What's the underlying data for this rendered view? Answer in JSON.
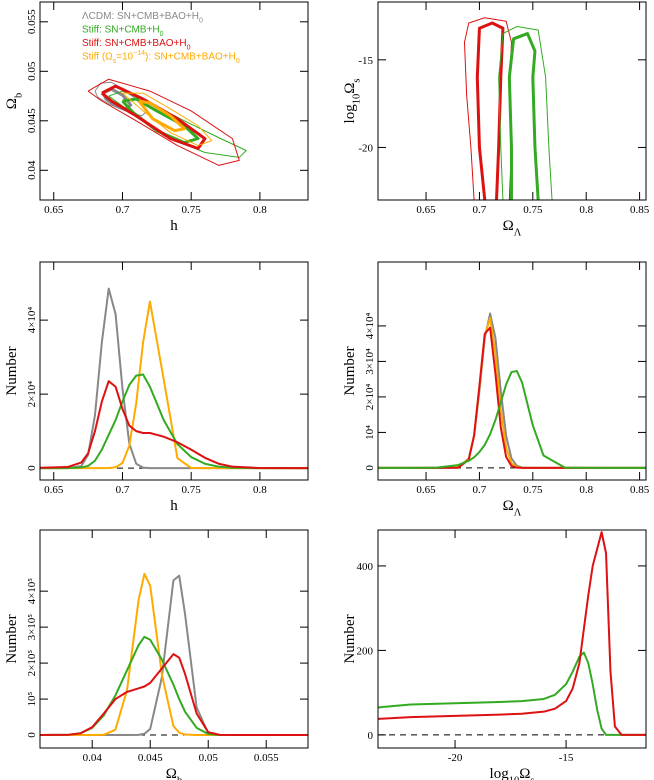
{
  "chart_data": [
    {
      "type": "contour",
      "xlabel": [
        {
          "text": "h"
        }
      ],
      "ylabel": [
        {
          "text": "Ω"
        },
        {
          "text": "b",
          "sub": true
        }
      ],
      "xlim": [
        0.64,
        0.835
      ],
      "ylim": [
        0.037,
        0.057
      ],
      "xticks": [
        0.65,
        0.7,
        0.75,
        0.8
      ],
      "yticks": [
        0.04,
        0.045,
        0.05,
        0.055
      ],
      "rotate_yticks": true,
      "series": [
        {
          "name": [
            {
              "text": "ΛCDM:  SN+CMB+BAO+H"
            },
            {
              "text": "0",
              "sub": true
            }
          ],
          "color": "#888888",
          "contours": [
            {
              "width": 1,
              "x": [
                0.68,
                0.684,
                0.692,
                0.7,
                0.712,
                0.718,
                0.714,
                0.702,
                0.69,
                0.682,
                0.68
              ],
              "y": [
                0.048,
                0.0488,
                0.0489,
                0.0482,
                0.047,
                0.046,
                0.0455,
                0.046,
                0.0467,
                0.0474,
                0.048
              ]
            },
            {
              "width": 3,
              "x": [
                0.686,
                0.692,
                0.7,
                0.706,
                0.702,
                0.694,
                0.688,
                0.686
              ],
              "y": [
                0.0478,
                0.0482,
                0.0476,
                0.0466,
                0.0462,
                0.0466,
                0.0472,
                0.0478
              ]
            }
          ]
        },
        {
          "name": [
            {
              "text": "Stiff:  SN+CMB+H"
            },
            {
              "text": "0",
              "sub": true
            }
          ],
          "color": "#33aa22",
          "contours": [
            {
              "width": 1,
              "x": [
                0.69,
                0.7,
                0.72,
                0.745,
                0.77,
                0.79,
                0.785,
                0.76,
                0.73,
                0.705,
                0.69
              ],
              "y": [
                0.0475,
                0.048,
                0.0468,
                0.045,
                0.0433,
                0.042,
                0.0413,
                0.0418,
                0.0435,
                0.046,
                0.0475
              ]
            },
            {
              "width": 3,
              "x": [
                0.7,
                0.71,
                0.725,
                0.745,
                0.755,
                0.745,
                0.725,
                0.708,
                0.7
              ],
              "y": [
                0.047,
                0.0472,
                0.046,
                0.0445,
                0.0432,
                0.0428,
                0.044,
                0.0458,
                0.047
              ]
            }
          ]
        },
        {
          "name": [
            {
              "text": "Stiff:  SN+CMB+BAO+H"
            },
            {
              "text": "0",
              "sub": true
            }
          ],
          "color": "#dd1111",
          "contours": [
            {
              "width": 1,
              "x": [
                0.675,
                0.69,
                0.72,
                0.75,
                0.78,
                0.785,
                0.77,
                0.74,
                0.71,
                0.685,
                0.675
              ],
              "y": [
                0.048,
                0.0492,
                0.048,
                0.046,
                0.0432,
                0.041,
                0.0405,
                0.0425,
                0.045,
                0.047,
                0.048
              ]
            },
            {
              "width": 3,
              "x": [
                0.685,
                0.695,
                0.715,
                0.74,
                0.76,
                0.755,
                0.735,
                0.71,
                0.692,
                0.685
              ],
              "y": [
                0.0478,
                0.0485,
                0.0472,
                0.0452,
                0.0432,
                0.0422,
                0.0432,
                0.0455,
                0.047,
                0.0478
              ]
            }
          ]
        },
        {
          "name": [
            {
              "text": "Stiff  (Ω"
            },
            {
              "text": "s",
              "sub": true
            },
            {
              "text": "=10"
            },
            {
              "text": "−14",
              "sup": true
            },
            {
              "text": "):  SN+CMB+BAO+H"
            },
            {
              "text": "0",
              "sub": true
            }
          ],
          "color": "#ffaa00",
          "contours": [
            {
              "width": 1,
              "x": [
                0.7,
                0.715,
                0.735,
                0.755,
                0.765,
                0.755,
                0.735,
                0.715,
                0.7
              ],
              "y": [
                0.0478,
                0.0478,
                0.0462,
                0.0445,
                0.043,
                0.0425,
                0.0438,
                0.046,
                0.0478
              ]
            },
            {
              "width": 3,
              "x": [
                0.712,
                0.72,
                0.735,
                0.745,
                0.738,
                0.722,
                0.712
              ],
              "y": [
                0.047,
                0.0468,
                0.0455,
                0.0442,
                0.044,
                0.0452,
                0.047
              ]
            }
          ]
        }
      ]
    },
    {
      "type": "contour",
      "xlabel": [
        {
          "text": "Ω"
        },
        {
          "text": "Λ",
          "sub": true
        }
      ],
      "ylabel": [
        {
          "text": "log"
        },
        {
          "text": "10",
          "sub": true
        },
        {
          "text": "Ω"
        },
        {
          "text": "s",
          "sub": true
        }
      ],
      "xlim": [
        0.605,
        0.856
      ],
      "ylim": [
        -23,
        -11.7
      ],
      "xticks": [
        0.65,
        0.7,
        0.75,
        0.8,
        0.85
      ],
      "yticks": [
        -20,
        -15
      ],
      "rotate_yticks": false,
      "series": [
        {
          "color": "#dd1111",
          "contours": [
            {
              "width": 1,
              "x": [
                0.695,
                0.692,
                0.688,
                0.686,
                0.69,
                0.705,
                0.725,
                0.73,
                0.728,
                0.73,
                0.728
              ],
              "y": [
                -23,
                -20,
                -17,
                -14,
                -12.9,
                -12.6,
                -12.8,
                -14,
                -17,
                -20,
                -23
              ]
            },
            {
              "width": 3,
              "x": [
                0.705,
                0.7,
                0.698,
                0.7,
                0.712,
                0.722,
                0.72,
                0.718,
                0.716
              ],
              "y": [
                -23,
                -20,
                -16,
                -13.2,
                -12.9,
                -13.2,
                -16,
                -20,
                -23
              ]
            }
          ]
        },
        {
          "color": "#33aa22",
          "contours": [
            {
              "width": 1,
              "x": [
                0.722,
                0.72,
                0.718,
                0.722,
                0.735,
                0.755,
                0.762,
                0.765,
                0.768
              ],
              "y": [
                -23,
                -20,
                -16,
                -13.5,
                -13.1,
                -13.3,
                -16,
                -20,
                -23
              ]
            },
            {
              "width": 3,
              "x": [
                0.73,
                0.73,
                0.728,
                0.732,
                0.745,
                0.752,
                0.75,
                0.752,
                0.755
              ],
              "y": [
                -23,
                -20,
                -16,
                -13.8,
                -13.5,
                -14.5,
                -16,
                -20,
                -23
              ]
            }
          ]
        }
      ]
    },
    {
      "type": "line",
      "xlabel": [
        {
          "text": "h"
        }
      ],
      "ylabel": [
        {
          "text": "Number"
        }
      ],
      "xlim": [
        0.64,
        0.835
      ],
      "ylim": [
        -3200,
        55700
      ],
      "xticks": [
        0.65,
        0.7,
        0.75,
        0.8
      ],
      "yticks": [
        0,
        {
          "value": 20000,
          "label": "2×10⁴"
        },
        {
          "value": 40000,
          "label": "4×10⁴"
        }
      ],
      "rotate_yticks": true,
      "zero_line": true,
      "x": [
        0.64,
        0.66,
        0.67,
        0.675,
        0.68,
        0.685,
        0.69,
        0.695,
        0.7,
        0.705,
        0.71,
        0.715,
        0.72,
        0.73,
        0.74,
        0.75,
        0.76,
        0.77,
        0.78,
        0.8,
        0.835
      ],
      "series": [
        {
          "color": "#888888",
          "values": [
            0,
            0,
            540,
            3600,
            14300,
            34000,
            48500,
            41600,
            21500,
            6600,
            1200,
            150,
            0,
            0,
            0,
            0,
            0,
            0,
            0,
            0,
            0
          ]
        },
        {
          "color": "#ffaa00",
          "values": [
            0,
            0,
            0,
            0,
            0,
            0,
            30,
            230,
            1400,
            6100,
            17500,
            34000,
            45000,
            24000,
            2700,
            60,
            0,
            0,
            0,
            0,
            0
          ]
        },
        {
          "color": "#33aa22",
          "values": [
            0,
            0,
            200,
            600,
            2000,
            5000,
            9000,
            13000,
            18000,
            22500,
            25000,
            25300,
            22000,
            13000,
            6500,
            3000,
            1200,
            400,
            100,
            0,
            0
          ]
        },
        {
          "color": "#dd1111",
          "values": [
            100,
            300,
            1500,
            4000,
            10000,
            18000,
            23500,
            22000,
            16000,
            11500,
            10000,
            9500,
            9500,
            8500,
            7000,
            5000,
            2800,
            1200,
            400,
            50,
            0
          ]
        }
      ]
    },
    {
      "type": "line",
      "xlabel": [
        {
          "text": "Ω"
        },
        {
          "text": "Λ",
          "sub": true
        }
      ],
      "ylabel": [
        {
          "text": "Number"
        }
      ],
      "xlim": [
        0.605,
        0.856
      ],
      "ylim": [
        -3400,
        58000
      ],
      "xticks": [
        0.65,
        0.7,
        0.75,
        0.8,
        0.85
      ],
      "yticks": [
        0,
        {
          "value": 10000,
          "label": "10⁴"
        },
        {
          "value": 20000,
          "label": "2×10⁴"
        },
        {
          "value": 30000,
          "label": "3×10⁴"
        },
        {
          "value": 40000,
          "label": "4×10⁴"
        }
      ],
      "rotate_yticks": true,
      "zero_line": true,
      "x": [
        0.605,
        0.64,
        0.66,
        0.68,
        0.69,
        0.695,
        0.7,
        0.705,
        0.71,
        0.715,
        0.72,
        0.725,
        0.73,
        0.735,
        0.74,
        0.75,
        0.76,
        0.78,
        0.81,
        0.856
      ],
      "series": [
        {
          "color": "#888888",
          "values": [
            0,
            0,
            0,
            100,
            2700,
            9100,
            21700,
            36600,
            43500,
            36600,
            21700,
            9100,
            2700,
            600,
            100,
            0,
            0,
            0,
            0,
            0
          ]
        },
        {
          "color": "#ffaa00",
          "values": [
            0,
            0,
            0,
            300,
            2500,
            9200,
            22600,
            37300,
            42200,
            32000,
            16500,
            5700,
            1350,
            250,
            0,
            0,
            0,
            0,
            0,
            0
          ]
        },
        {
          "color": "#dd1111",
          "values": [
            0,
            0,
            0,
            40,
            2300,
            9100,
            23200,
            37800,
            39500,
            26500,
            11400,
            3100,
            550,
            80,
            0,
            0,
            0,
            0,
            0,
            0
          ]
        },
        {
          "color": "#33aa22",
          "values": [
            0,
            0,
            100,
            800,
            2000,
            3000,
            4500,
            6500,
            9500,
            13500,
            18500,
            23500,
            27000,
            27300,
            24000,
            12000,
            3500,
            100,
            0,
            0
          ]
        }
      ]
    },
    {
      "type": "line",
      "xlabel": [
        {
          "text": "Ω"
        },
        {
          "text": "b",
          "sub": true
        }
      ],
      "ylabel": [
        {
          "text": "Number"
        }
      ],
      "xlim": [
        0.0355,
        0.0586
      ],
      "ylim": [
        -36000,
        570000
      ],
      "xticks": [
        0.04,
        0.045,
        0.05,
        0.055
      ],
      "yticks": [
        0,
        {
          "value": 100000,
          "label": "10⁵"
        },
        {
          "value": 200000,
          "label": "2×10⁵"
        },
        {
          "value": 300000,
          "label": "3×10⁵"
        },
        {
          "value": 400000,
          "label": "4×10⁵"
        }
      ],
      "rotate_yticks": true,
      "zero_line": true,
      "x": [
        0.0355,
        0.038,
        0.039,
        0.04,
        0.041,
        0.042,
        0.043,
        0.044,
        0.0445,
        0.045,
        0.046,
        0.047,
        0.0475,
        0.048,
        0.049,
        0.05,
        0.051,
        0.053,
        0.0586
      ],
      "series": [
        {
          "color": "#888888",
          "values": [
            0,
            0,
            0,
            0,
            0,
            0,
            0,
            540,
            3600,
            17000,
            160000,
            430000,
            443000,
            337000,
            77000,
            5000,
            0,
            0,
            0
          ]
        },
        {
          "color": "#ffaa00",
          "values": [
            0,
            0,
            0,
            0,
            700,
            15000,
            125000,
            376000,
            448000,
            415000,
            169000,
            25000,
            6700,
            1400,
            0,
            0,
            0,
            0,
            0
          ]
        },
        {
          "color": "#33aa22",
          "values": [
            0,
            1000,
            5000,
            20000,
            55000,
            110000,
            180000,
            250000,
            273000,
            265000,
            210000,
            140000,
            100000,
            65000,
            20000,
            3000,
            0,
            0,
            0
          ]
        },
        {
          "color": "#dd1111",
          "values": [
            0,
            1000,
            5000,
            22000,
            60000,
            100000,
            120000,
            130000,
            135000,
            145000,
            185000,
            225000,
            215000,
            170000,
            60000,
            8000,
            500,
            0,
            0
          ]
        }
      ]
    },
    {
      "type": "line",
      "xlabel": [
        {
          "text": "log"
        },
        {
          "text": "10",
          "sub": true
        },
        {
          "text": "Ω"
        },
        {
          "text": "s",
          "sub": true
        }
      ],
      "ylabel": [
        {
          "text": "Number"
        }
      ],
      "xlim": [
        -23.47,
        -11.4
      ],
      "ylim": [
        -31,
        485
      ],
      "xticks": [
        -20,
        -15
      ],
      "yticks": [
        0,
        200,
        400
      ],
      "rotate_yticks": false,
      "zero_line": true,
      "x": [
        -23.47,
        -22,
        -20,
        -18,
        -17,
        -16,
        -15.5,
        -15,
        -14.7,
        -14.4,
        -14.2,
        -14,
        -13.8,
        -13.6,
        -13.4,
        -13.2,
        -13,
        -12.8,
        -12.5,
        -11.4
      ],
      "series": [
        {
          "color": "#33aa22",
          "values": [
            65,
            72,
            75,
            78,
            80,
            85,
            95,
            120,
            150,
            185,
            195,
            170,
            120,
            60,
            15,
            0,
            0,
            0,
            0,
            0
          ]
        },
        {
          "color": "#dd1111",
          "values": [
            38,
            42,
            45,
            48,
            50,
            55,
            62,
            80,
            110,
            170,
            250,
            330,
            400,
            440,
            480,
            430,
            150,
            20,
            0,
            0
          ]
        }
      ]
    }
  ]
}
